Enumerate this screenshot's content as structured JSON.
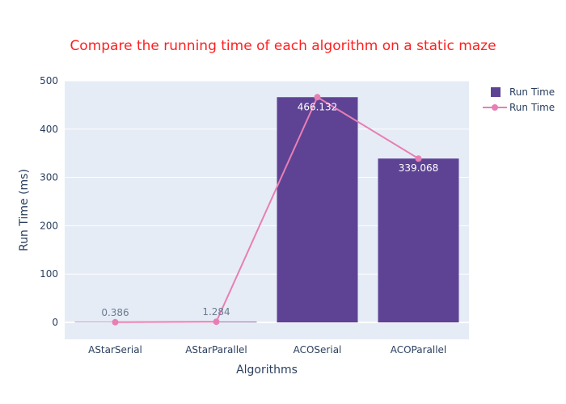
{
  "chart_data": {
    "type": "bar",
    "title": "Compare the running time of each algorithm on a static maze",
    "xlabel": "Algorithms",
    "ylabel": "Run Time (ms)",
    "ylim": [
      -35,
      500
    ],
    "yticks": [
      0,
      100,
      200,
      300,
      400,
      500
    ],
    "categories": [
      "AStarSerial",
      "AStarParallel",
      "ACOSerial",
      "ACOParallel"
    ],
    "series": [
      {
        "name": "Run Time",
        "kind": "bar",
        "color": "#5e4395",
        "values": [
          0.386,
          1.284,
          466.132,
          339.068
        ]
      },
      {
        "name": "Run Time",
        "kind": "line",
        "color": "#e87fb4",
        "values": [
          0.386,
          1.284,
          466.132,
          339.068
        ]
      }
    ],
    "data_labels": [
      "0.386",
      "1.284",
      "466.132",
      "339.068"
    ],
    "grid": true,
    "legend_position": "top-right",
    "colors": {
      "title": "#ff1f1f",
      "plot_bg": "#e5ecf6",
      "grid": "#ffffff",
      "text": "#2a3f5f"
    }
  }
}
